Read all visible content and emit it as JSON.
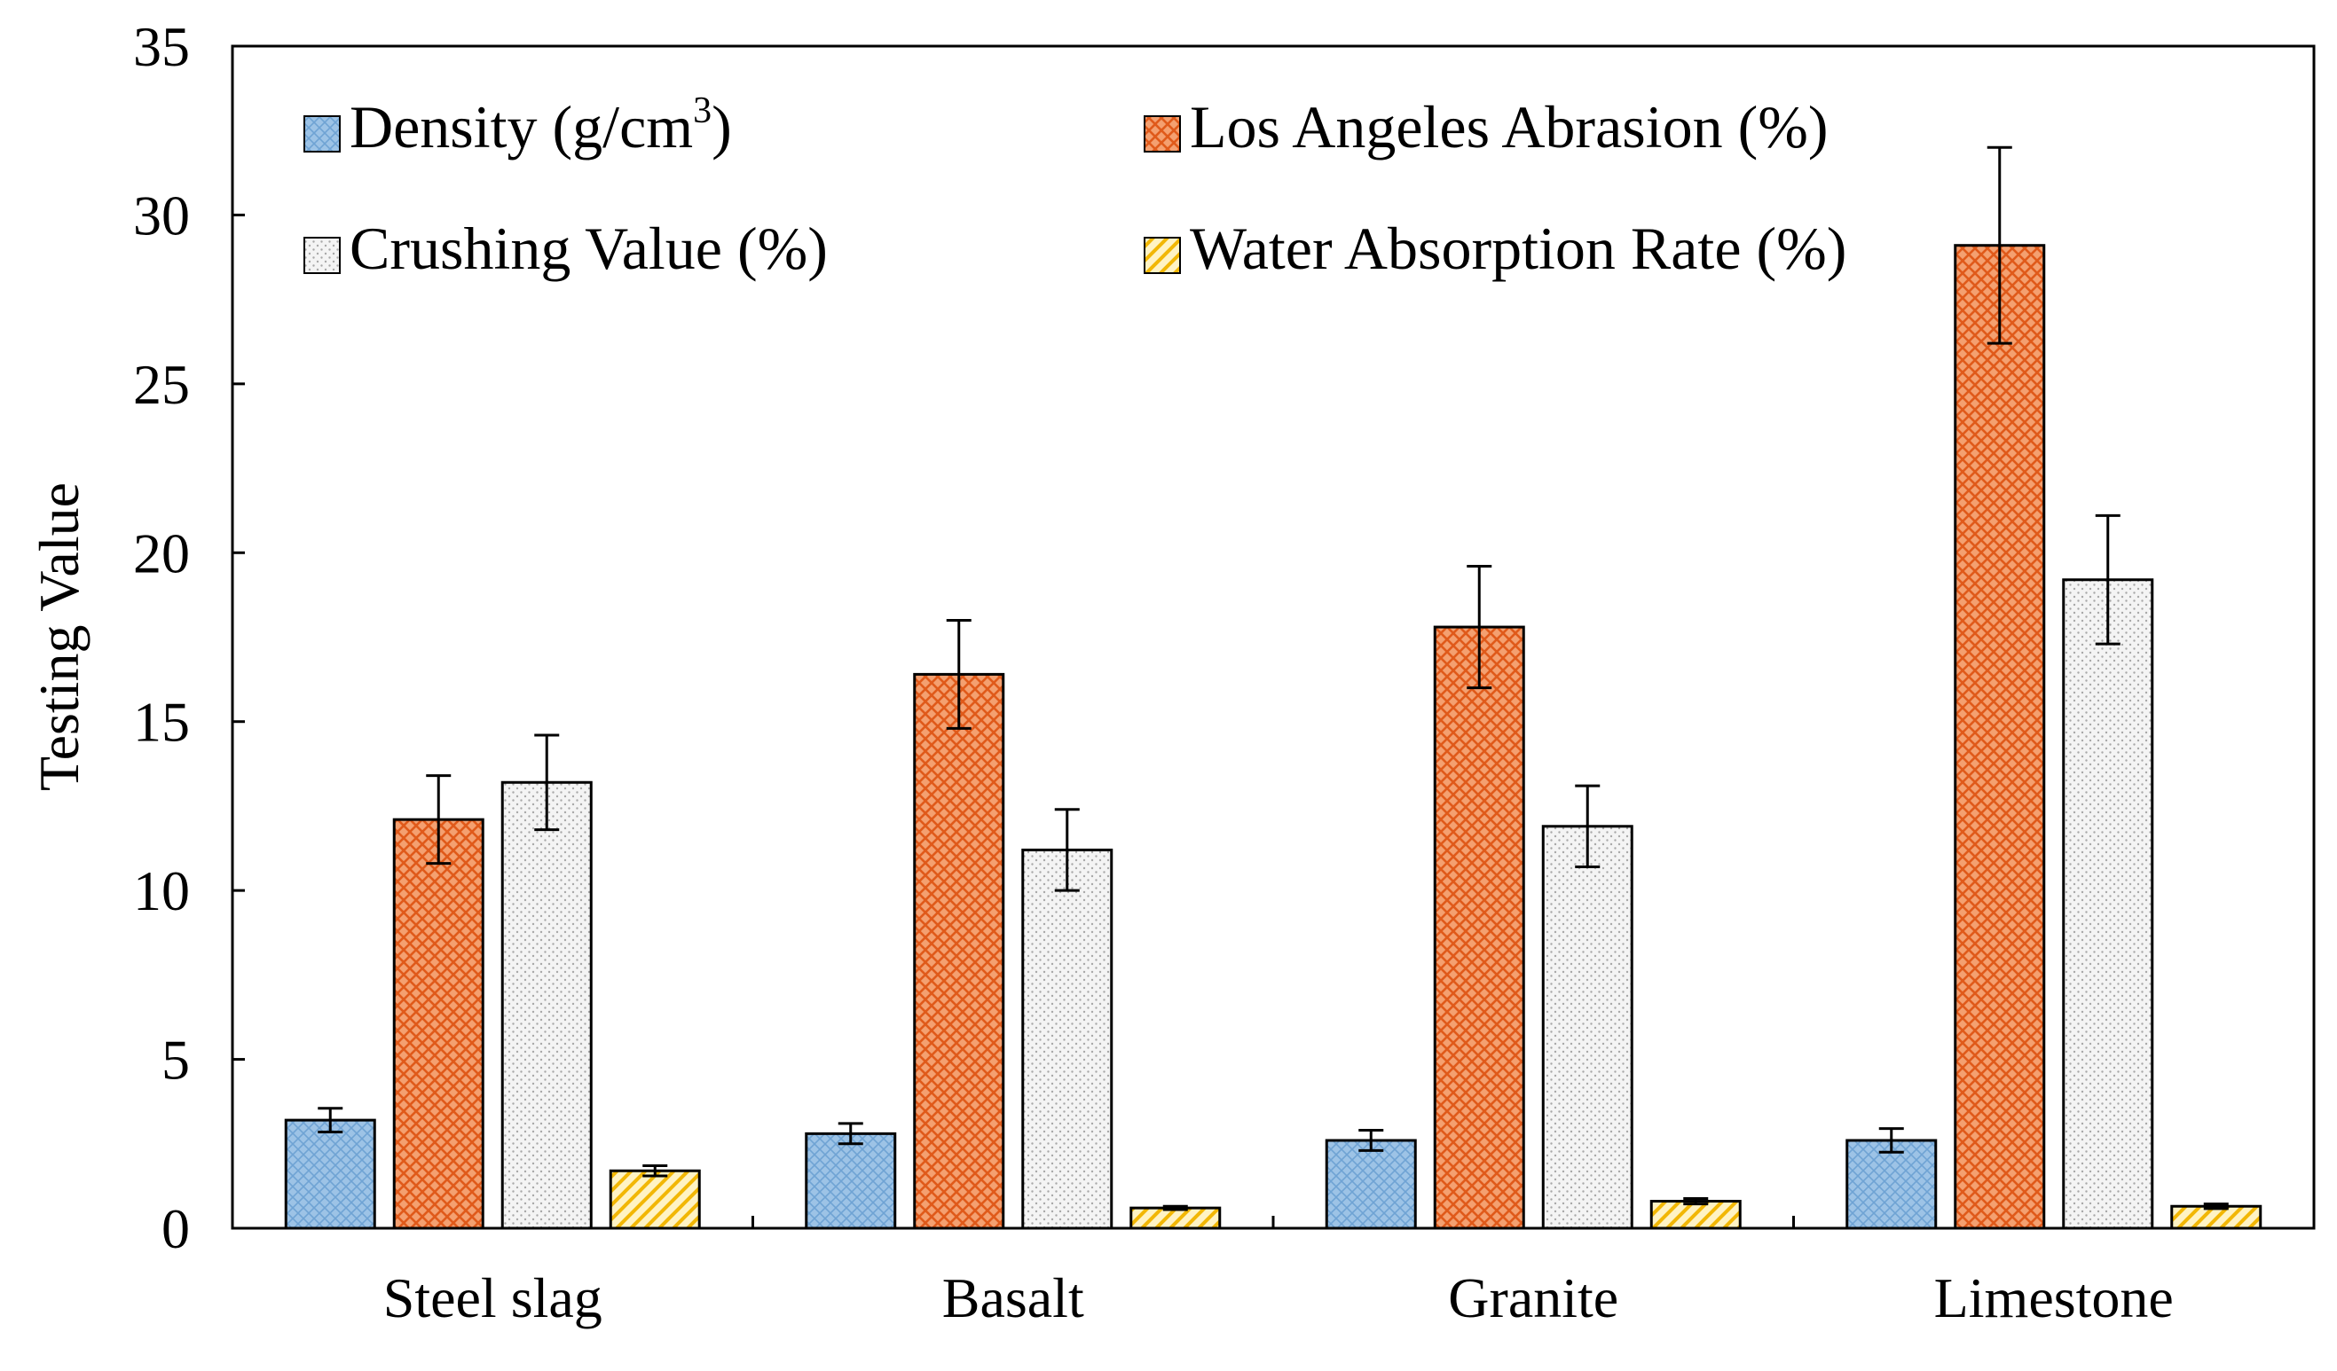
{
  "chart_data": {
    "type": "bar",
    "categories": [
      "Steel slag",
      "Basalt",
      "Granite",
      "Limestone"
    ],
    "ylabel": "Testing Value",
    "xlabel": "",
    "ylim": [
      0,
      35
    ],
    "yticks": [
      0,
      5,
      10,
      15,
      20,
      25,
      30,
      35
    ],
    "grid": false,
    "legend_position": "top",
    "series": [
      {
        "name": "Density (g/cm",
        "name_sup": "3",
        "name_tail": ")",
        "fill": "#9dc3e6",
        "pattern": "grid",
        "values": [
          3.2,
          2.8,
          2.6,
          2.6
        ],
        "errors": [
          0.35,
          0.3,
          0.3,
          0.35
        ]
      },
      {
        "name": "Los Angeles Abrasion (%)",
        "fill": "#f4a070",
        "pattern": "crosshatch",
        "values": [
          12.1,
          16.4,
          17.8,
          29.1
        ],
        "errors": [
          1.3,
          1.6,
          1.8,
          2.9
        ]
      },
      {
        "name": "Crushing Value (%)",
        "fill": "#f2f2f2",
        "pattern": "dots",
        "values": [
          13.2,
          11.2,
          11.9,
          19.2
        ],
        "errors": [
          1.4,
          1.2,
          1.2,
          1.9
        ]
      },
      {
        "name": "Water Absorption Rate (%)",
        "fill": "#ffd966",
        "pattern": "diagonal",
        "values": [
          1.7,
          0.6,
          0.8,
          0.65
        ],
        "errors": [
          0.15,
          0.05,
          0.08,
          0.07
        ]
      }
    ]
  }
}
